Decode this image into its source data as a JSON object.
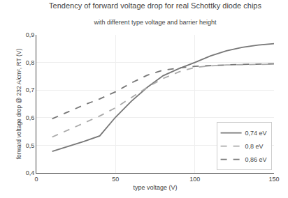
{
  "chart_data": {
    "type": "line",
    "title": "Tendency of forward voltage drop for real Schottky diode chips",
    "subtitle": "with different type voltage and barrier height",
    "x_label": "type voltage (V)",
    "y_label": "forward voltage drop @ 232 A/cm², RT (V)",
    "x": [
      10,
      20,
      30,
      40,
      50,
      60,
      70,
      80,
      90,
      100,
      110,
      120,
      130,
      140,
      150
    ],
    "series": [
      {
        "name": "0,74 eV",
        "color": "#777777",
        "line_style": "solid",
        "values": [
          0.478,
          0.496,
          0.514,
          0.534,
          0.602,
          0.66,
          0.71,
          0.752,
          0.778,
          0.8,
          0.824,
          0.842,
          0.855,
          0.863,
          0.868
        ]
      },
      {
        "name": "0,8 eV",
        "color": "#aaaaaa",
        "line_style": "dashed",
        "values": [
          0.53,
          0.556,
          0.58,
          0.606,
          0.636,
          0.674,
          0.71,
          0.742,
          0.766,
          0.782,
          0.788,
          0.791,
          0.792,
          0.793,
          0.794
        ]
      },
      {
        "name": "0,86 eV",
        "color": "#777777",
        "line_style": "dashed",
        "values": [
          0.596,
          0.622,
          0.646,
          0.668,
          0.694,
          0.726,
          0.754,
          0.772,
          0.78,
          0.786,
          0.789,
          0.791,
          0.793,
          0.794,
          0.795
        ]
      }
    ],
    "xlim": [
      0,
      150
    ],
    "ylim": [
      0.4,
      0.9
    ],
    "xticks": [
      0,
      50,
      100,
      150
    ],
    "yticks": [
      {
        "value": 0.4,
        "label": "0,4"
      },
      {
        "value": 0.5,
        "label": "0,5"
      },
      {
        "value": 0.6,
        "label": "0,6"
      },
      {
        "value": 0.7,
        "label": "0,7"
      },
      {
        "value": 0.8,
        "label": "0,8"
      },
      {
        "value": 0.9,
        "label": "0,9"
      }
    ],
    "grid": true,
    "legend": "lower right"
  }
}
